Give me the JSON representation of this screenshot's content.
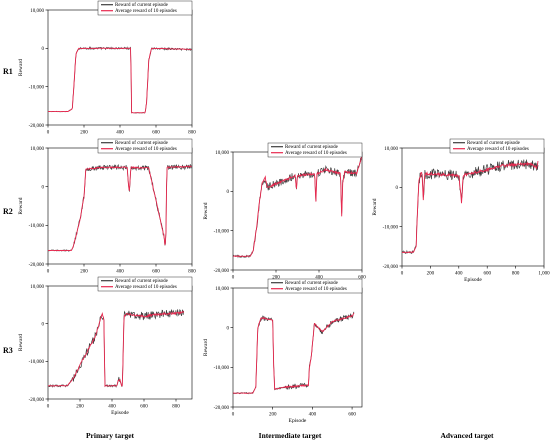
{
  "figure": {
    "row_labels": [
      "R1",
      "R2",
      "R3"
    ],
    "column_labels": [
      "Primary target",
      "Intermediate target",
      "Advanced target"
    ]
  },
  "colors": {
    "current": "#3d3d3d",
    "average": "#e8294f",
    "axis": "#000000"
  },
  "chart_data": [
    {
      "id": "r1-primary",
      "type": "line",
      "xlabel": "",
      "ylabel": "Reward",
      "xlim": [
        0,
        800
      ],
      "ylim": [
        -20000,
        10000
      ],
      "xticks": [
        0,
        200,
        400,
        600,
        800
      ],
      "xtick_labels": [
        "0",
        "200",
        "400",
        "600",
        "800"
      ],
      "yticks": [
        -20000,
        -10000,
        0,
        10000
      ],
      "ytick_labels": [
        "-20,000",
        "-10,000",
        "0",
        "10,000"
      ],
      "legend": {
        "position": "top-right",
        "entries": [
          "Reward of current episode",
          "Average reward of 10 episodes"
        ]
      },
      "noise": 280,
      "series": [
        {
          "name": "Average reward of 10 episodes",
          "x": [
            0,
            110,
            135,
            145,
            155,
            170,
            460,
            464,
            540,
            548,
            560,
            575,
            800
          ],
          "y": [
            -16500,
            -16500,
            -15800,
            -9000,
            -1500,
            0,
            0,
            -16800,
            -16800,
            -14000,
            -3000,
            0,
            -300
          ]
        }
      ]
    },
    {
      "id": "r2-primary",
      "type": "line",
      "xlabel": "",
      "ylabel": "Reward",
      "xlim": [
        0,
        800
      ],
      "ylim": [
        -20000,
        10000
      ],
      "xticks": [
        0,
        200,
        400,
        600,
        800
      ],
      "xtick_labels": [
        "0",
        "200",
        "400",
        "600",
        "800"
      ],
      "yticks": [
        -20000,
        -10000,
        0,
        10000
      ],
      "ytick_labels": [
        "-20,000",
        "-10,000",
        "0",
        "10,000"
      ],
      "legend": {
        "position": "top-right",
        "entries": [
          "Reward of current episode",
          "Average reward of 10 episodes"
        ]
      },
      "noise": 650,
      "series": [
        {
          "name": "Average reward of 10 episodes",
          "x": [
            0,
            130,
            140,
            160,
            180,
            200,
            210,
            300,
            440,
            448,
            452,
            460,
            560,
            645,
            650,
            655,
            660,
            800
          ],
          "y": [
            -16500,
            -16500,
            -15500,
            -12000,
            -8000,
            -2500,
            4500,
            5000,
            5000,
            0,
            -1500,
            5000,
            4800,
            -13000,
            -15500,
            -13000,
            5000,
            5200
          ]
        }
      ]
    },
    {
      "id": "r2-intermediate",
      "type": "line",
      "xlabel": "",
      "ylabel": "Reward",
      "xlim": [
        0,
        600
      ],
      "ylim": [
        -20000,
        10000
      ],
      "xticks": [
        0,
        200,
        400,
        600
      ],
      "xtick_labels": [
        "0",
        "200",
        "400",
        "600"
      ],
      "yticks": [
        -20000,
        -10000,
        0,
        10000
      ],
      "ytick_labels": [
        "-20,000",
        "-10,000",
        "0",
        "10,000"
      ],
      "legend": {
        "position": "top-right",
        "entries": [
          "Reward of current episode",
          "Average reward of 10 episodes"
        ]
      },
      "noise": 1000,
      "series": [
        {
          "name": "Average reward of 10 episodes",
          "x": [
            0,
            80,
            95,
            110,
            120,
            135,
            150,
            160,
            290,
            295,
            300,
            380,
            385,
            390,
            430,
            500,
            505,
            510,
            520,
            575,
            595,
            600
          ],
          "y": [
            -16500,
            -16500,
            -15000,
            -9000,
            -4000,
            2000,
            3500,
            1000,
            4000,
            500,
            4000,
            4500,
            -3000,
            4500,
            5500,
            4500,
            -7000,
            2000,
            5000,
            4500,
            8000,
            9500
          ]
        }
      ]
    },
    {
      "id": "r2-advanced",
      "type": "line",
      "xlabel": "Episode",
      "ylabel": "Reward",
      "xlim": [
        0,
        1000
      ],
      "ylim": [
        -20000,
        10000
      ],
      "xticks": [
        0,
        200,
        400,
        600,
        800,
        1000
      ],
      "xtick_labels": [
        "0",
        "200",
        "400",
        "600",
        "800",
        "1,000"
      ],
      "yticks": [
        -20000,
        -10000,
        0,
        10000
      ],
      "ytick_labels": [
        "-20,000",
        "-10,000",
        "0",
        "10,000"
      ],
      "legend": {
        "position": "top-right",
        "entries": [
          "Reward of current episode",
          "Average reward of 10 episodes"
        ]
      },
      "noise": 1400,
      "series": [
        {
          "name": "Average reward of 10 episodes",
          "x": [
            0,
            80,
            100,
            110,
            120,
            140,
            150,
            160,
            400,
            420,
            430,
            600,
            700,
            900,
            950,
            960
          ],
          "y": [
            -16500,
            -16500,
            -15000,
            -5000,
            2000,
            4000,
            -3000,
            3500,
            3000,
            -4000,
            3000,
            4500,
            5500,
            6000,
            5000,
            7000
          ]
        }
      ]
    },
    {
      "id": "r3-primary",
      "type": "line",
      "xlabel": "Episode",
      "ylabel": "Reward",
      "xlim": [
        0,
        900
      ],
      "ylim": [
        -20000,
        10000
      ],
      "xticks": [
        0,
        200,
        400,
        600,
        800
      ],
      "xtick_labels": [
        "0",
        "200",
        "400",
        "600",
        "800"
      ],
      "yticks": [
        -20000,
        -10000,
        0,
        10000
      ],
      "ytick_labels": [
        "-20,000",
        "-10,000",
        "0",
        "10,000"
      ],
      "legend": {
        "position": "top-right",
        "entries": [
          "Reward of current episode",
          "Average reward of 10 episodes"
        ]
      },
      "noise": 1100,
      "series": [
        {
          "name": "Average reward of 10 episodes",
          "x": [
            0,
            120,
            150,
            200,
            250,
            300,
            330,
            340,
            350,
            355,
            430,
            440,
            450,
            460,
            465,
            475,
            490,
            600,
            700,
            850
          ],
          "y": [
            -16500,
            -16500,
            -15000,
            -11000,
            -7000,
            -3000,
            1500,
            2500,
            1000,
            -16500,
            -16500,
            -15000,
            -15000,
            -16500,
            -16500,
            2000,
            2500,
            2000,
            2500,
            3000
          ]
        }
      ]
    },
    {
      "id": "r3-intermediate",
      "type": "line",
      "xlabel": "Episode",
      "ylabel": "Reward",
      "xlim": [
        0,
        650
      ],
      "ylim": [
        -20000,
        10000
      ],
      "xticks": [
        0,
        200,
        400,
        600
      ],
      "xtick_labels": [
        "0",
        "200",
        "400",
        "600"
      ],
      "yticks": [
        -20000,
        -10000,
        0,
        10000
      ],
      "ytick_labels": [
        "-20,000",
        "-10,000",
        "0",
        "10,000"
      ],
      "legend": {
        "position": "top-right",
        "entries": [
          "Reward of current episode",
          "Average reward of 10 episodes"
        ]
      },
      "noise": 650,
      "series": [
        {
          "name": "Average reward of 10 episodes",
          "x": [
            0,
            100,
            115,
            125,
            140,
            200,
            205,
            210,
            260,
            380,
            385,
            395,
            410,
            450,
            500,
            600,
            610
          ],
          "y": [
            -16500,
            -16500,
            -15000,
            0,
            2500,
            2000,
            -10000,
            -15500,
            -15000,
            -14500,
            -10000,
            -7000,
            1000,
            -1000,
            1500,
            3000,
            3500
          ]
        }
      ]
    }
  ]
}
